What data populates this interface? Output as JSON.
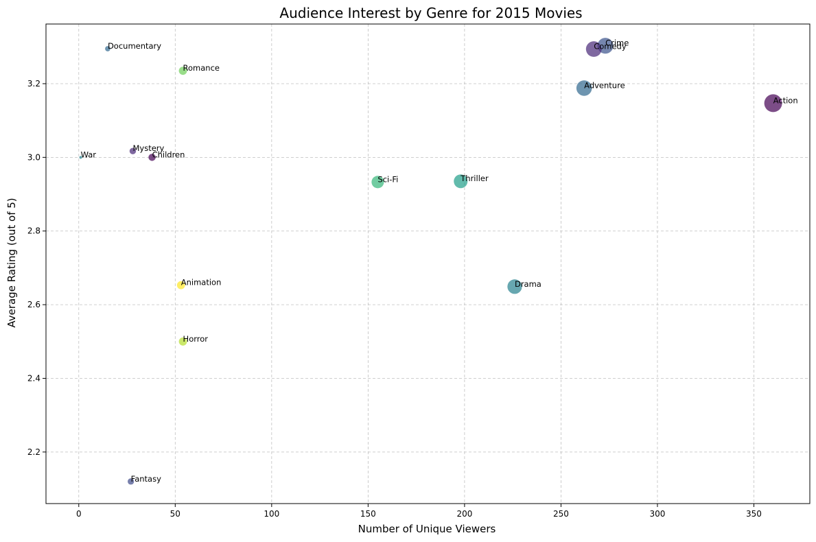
{
  "chart_data": {
    "type": "scatter",
    "title": "Audience Interest by Genre for 2015 Movies",
    "xlabel": "Number of Unique Viewers",
    "ylabel": "Average Rating (out of 5)",
    "xlim": [
      -17,
      379
    ],
    "ylim": [
      2.06,
      3.362
    ],
    "xticks": [
      0,
      50,
      100,
      150,
      200,
      250,
      300,
      350
    ],
    "yticks": [
      2.2,
      2.4,
      2.6,
      2.8,
      3.0,
      3.2
    ],
    "ytick_labels": [
      "2.2",
      "2.4",
      "2.6",
      "2.8",
      "3.0",
      "3.2"
    ],
    "grid": true,
    "points": [
      {
        "label": "Action",
        "x": 360,
        "y": 3.147,
        "color": "#440154"
      },
      {
        "label": "Crime",
        "x": 273,
        "y": 3.303,
        "color": "#3b528b"
      },
      {
        "label": "Comedy",
        "x": 267,
        "y": 3.294,
        "color": "#482878"
      },
      {
        "label": "Adventure",
        "x": 262,
        "y": 3.188,
        "color": "#31688e"
      },
      {
        "label": "Drama",
        "x": 226,
        "y": 2.649,
        "color": "#26828e"
      },
      {
        "label": "Thriller",
        "x": 198,
        "y": 2.935,
        "color": "#1f9e89"
      },
      {
        "label": "Sci-Fi",
        "x": 155,
        "y": 2.933,
        "color": "#35b779"
      },
      {
        "label": "Romance",
        "x": 54,
        "y": 3.235,
        "color": "#6ece58"
      },
      {
        "label": "Horror",
        "x": 54,
        "y": 2.5,
        "color": "#b5de2b"
      },
      {
        "label": "Animation",
        "x": 53,
        "y": 2.653,
        "color": "#fde725"
      },
      {
        "label": "Children",
        "x": 38,
        "y": 3.0,
        "color": "#440154"
      },
      {
        "label": "Mystery",
        "x": 28,
        "y": 3.017,
        "color": "#482878"
      },
      {
        "label": "Fantasy",
        "x": 27,
        "y": 2.12,
        "color": "#3e4a89"
      },
      {
        "label": "Documentary",
        "x": 15,
        "y": 3.295,
        "color": "#31688e"
      },
      {
        "label": "War",
        "x": 1,
        "y": 3.0,
        "color": "#26828e"
      }
    ],
    "colors": [
      "#440154",
      "#482878",
      "#3e4a89",
      "#31688e",
      "#26828e",
      "#1f9e89",
      "#35b779",
      "#6ece58",
      "#b5de2b",
      "#fde725"
    ]
  }
}
